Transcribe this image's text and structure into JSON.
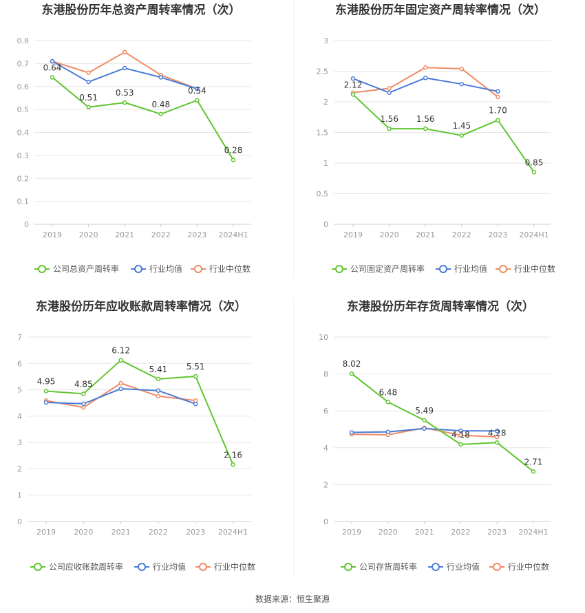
{
  "colors": {
    "company": "#5ec52e",
    "avg": "#4a7bd8",
    "median": "#f08a64",
    "grid": "#e6e6e6",
    "axis": "#cccccc"
  },
  "source": "数据来源：恒生聚源",
  "chart_data": [
    {
      "type": "line",
      "title": "东港股份历年总资产周转率情况（次）",
      "categories": [
        "2019",
        "2020",
        "2021",
        "2022",
        "2023",
        "2024H1"
      ],
      "ylim": [
        0,
        0.8
      ],
      "yticks": [
        "0",
        "0.1",
        "0.2",
        "0.3",
        "0.4",
        "0.5",
        "0.6",
        "0.7",
        "0.8"
      ],
      "legend_position": "bottom",
      "series": [
        {
          "name": "公司总资产周转率",
          "role": "company",
          "values": [
            0.64,
            0.51,
            0.53,
            0.48,
            0.54,
            0.28
          ],
          "labels": [
            "0.64",
            "0.51",
            "0.53",
            "0.48",
            "0.54",
            "0.28"
          ]
        },
        {
          "name": "行业均值",
          "role": "avg",
          "values": [
            0.71,
            0.62,
            0.68,
            0.64,
            0.59,
            null
          ]
        },
        {
          "name": "行业中位数",
          "role": "median",
          "values": [
            0.71,
            0.66,
            0.75,
            0.65,
            0.59,
            null
          ]
        }
      ]
    },
    {
      "type": "line",
      "title": "东港股份历年固定资产周转率情况（次）",
      "categories": [
        "2019",
        "2020",
        "2021",
        "2022",
        "2023",
        "2024H1"
      ],
      "ylim": [
        0,
        3
      ],
      "yticks": [
        "0",
        "0.5",
        "1",
        "1.5",
        "2",
        "2.5",
        "3"
      ],
      "legend_position": "bottom",
      "series": [
        {
          "name": "公司固定资产周转率",
          "role": "company",
          "values": [
            2.12,
            1.56,
            1.56,
            1.45,
            1.7,
            0.85
          ],
          "labels": [
            "2.12",
            "1.56",
            "1.56",
            "1.45",
            "1.70",
            "0.85"
          ]
        },
        {
          "name": "行业均值",
          "role": "avg",
          "values": [
            2.38,
            2.15,
            2.39,
            2.29,
            2.17,
            null
          ]
        },
        {
          "name": "行业中位数",
          "role": "median",
          "values": [
            2.15,
            2.22,
            2.56,
            2.54,
            2.08,
            null
          ]
        }
      ]
    },
    {
      "type": "line",
      "title": "东港股份历年应收账款周转率情况（次）",
      "categories": [
        "2019",
        "2020",
        "2021",
        "2022",
        "2023",
        "2024H1"
      ],
      "ylim": [
        0,
        7
      ],
      "yticks": [
        "0",
        "1",
        "2",
        "3",
        "4",
        "5",
        "6",
        "7"
      ],
      "legend_position": "bottom",
      "series": [
        {
          "name": "公司应收账款周转率",
          "role": "company",
          "values": [
            4.95,
            4.85,
            6.12,
            5.41,
            5.51,
            2.16
          ],
          "labels": [
            "4.95",
            "4.85",
            "6.12",
            "5.41",
            "5.51",
            "2.16"
          ]
        },
        {
          "name": "行业均值",
          "role": "avg",
          "values": [
            4.52,
            4.47,
            5.04,
            4.97,
            4.46,
            null
          ]
        },
        {
          "name": "行业中位数",
          "role": "median",
          "values": [
            4.59,
            4.33,
            5.25,
            4.76,
            4.59,
            null
          ]
        }
      ]
    },
    {
      "type": "line",
      "title": "东港股份历年存货周转率情况（次）",
      "categories": [
        "2019",
        "2020",
        "2021",
        "2022",
        "2023",
        "2024H1"
      ],
      "ylim": [
        0,
        10
      ],
      "yticks": [
        "0",
        "2",
        "4",
        "6",
        "8",
        "10"
      ],
      "legend_position": "bottom",
      "series": [
        {
          "name": "公司存货周转率",
          "role": "company",
          "values": [
            8.02,
            6.48,
            5.49,
            4.18,
            4.28,
            2.71
          ],
          "labels": [
            "8.02",
            "6.48",
            "5.49",
            "4.18",
            "4.28",
            "2.71"
          ]
        },
        {
          "name": "行业均值",
          "role": "avg",
          "values": [
            4.83,
            4.86,
            5.04,
            4.92,
            4.91,
            null
          ]
        },
        {
          "name": "行业中位数",
          "role": "median",
          "values": [
            4.73,
            4.7,
            5.08,
            4.68,
            4.59,
            null
          ]
        }
      ]
    }
  ]
}
